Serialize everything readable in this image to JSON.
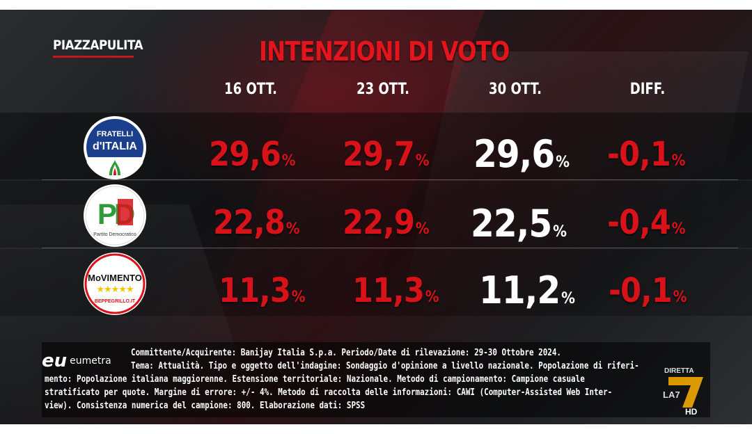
{
  "brand": {
    "part1": "PIAZZA",
    "part2": "PULITA"
  },
  "title": "INTENZIONI DI VOTO",
  "columns": [
    "16 OTT.",
    "23 OTT.",
    "30 OTT.",
    "DIFF."
  ],
  "parties": [
    {
      "logo": {
        "line1": "FRATELLI",
        "line2": "d'ITALIA"
      },
      "values": [
        {
          "v": "29,6",
          "pct": "%"
        },
        {
          "v": "29,7",
          "pct": "%"
        },
        {
          "v": "29,6",
          "pct": "%"
        },
        {
          "v": "-0,1",
          "pct": "%"
        }
      ]
    },
    {
      "logo": {
        "main": "PD",
        "sub": "Partito Democratico"
      },
      "values": [
        {
          "v": "22,8",
          "pct": "%"
        },
        {
          "v": "22,9",
          "pct": "%"
        },
        {
          "v": "22,5",
          "pct": "%"
        },
        {
          "v": "-0,4",
          "pct": "%"
        }
      ]
    },
    {
      "logo": {
        "line1": "MoVIMENTO",
        "stars": "★★★★★",
        "sub": "BEPPEGRILLO.IT"
      },
      "values": [
        {
          "v": "11,3",
          "pct": "%"
        },
        {
          "v": "11,3",
          "pct": "%"
        },
        {
          "v": "11,2",
          "pct": "%"
        },
        {
          "v": "-0,1",
          "pct": "%"
        }
      ]
    }
  ],
  "footer": {
    "logo_mark": "eu",
    "logo_word": "eumetra",
    "lines": [
      "Committente/Acquirente: Banijay Italia S.p.a. Periodo/Date di rilevazione: 29-30 Ottobre 2024.",
      "Tema: Attualità. Tipo e oggetto dell'indagine: Sondaggio d'opinione a livello nazionale. Popolazione di riferi-",
      "mento: Popolazione italiana maggiorenne. Estensione territoriale: Nazionale. Metodo di campionamento: Campione casuale",
      "stratificato per quote. Margine di errore: +/- 4%. Metodo di raccolta delle informazioni: CAWI (Computer-Assisted Web Inter-",
      "view). Consistenza numerica del campione: 800. Elaborazione dati: SPSS"
    ]
  },
  "channel": {
    "top": "DIRETTA",
    "mark": "LA7",
    "hd": "HD"
  },
  "colors": {
    "accent_red": "#d9121a",
    "title_red": "#e3141c",
    "fdi_blue": "#1b3f8c",
    "pd_green": "#2f9a3a",
    "m5s_yellow": "#f5c400"
  }
}
